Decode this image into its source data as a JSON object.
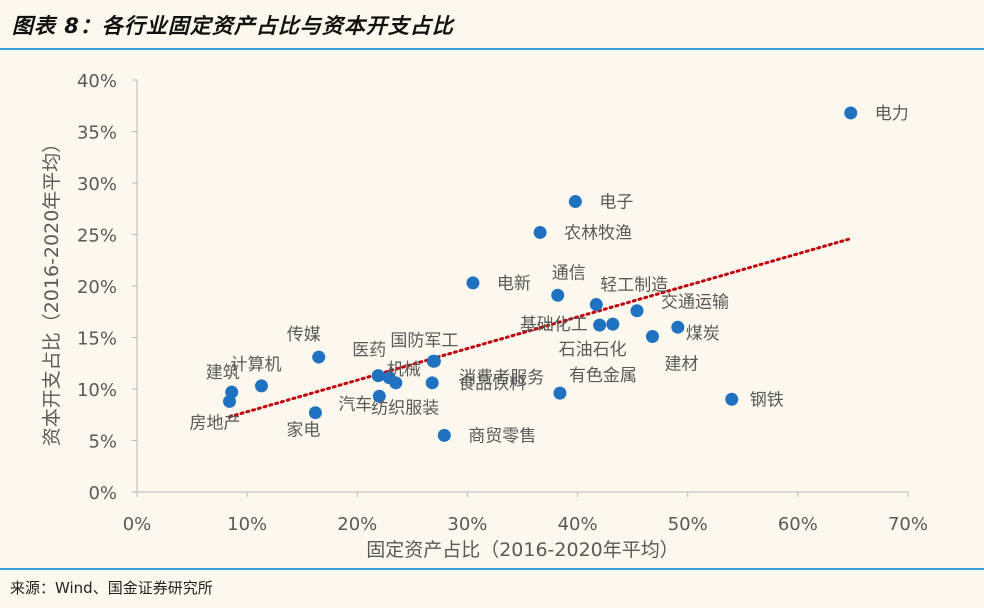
{
  "page": {
    "title": "图表 8：各行业固定资产占比与资本开支占比",
    "source": "来源：Wind、国金证券研究所"
  },
  "colors": {
    "point": "#1f72bf",
    "trend": "#c0000f",
    "axis": "#b9b9b9",
    "text": "#595959",
    "accent_rule": "#3aa0d8"
  },
  "chart_data": {
    "type": "scatter",
    "title": "各行业固定资产占比与资本开支占比",
    "xlabel": "固定资产占比（2016-2020年平均）",
    "ylabel": "资本开支占比（2016-2020年平均）",
    "xlim": [
      0,
      70
    ],
    "ylim": [
      0,
      40
    ],
    "x_ticks": [
      0,
      10,
      20,
      30,
      40,
      50,
      60,
      70
    ],
    "y_ticks": [
      0,
      5,
      10,
      15,
      20,
      25,
      30,
      35,
      40
    ],
    "x_tick_labels": [
      "0%",
      "10%",
      "20%",
      "30%",
      "40%",
      "50%",
      "60%",
      "70%"
    ],
    "y_tick_labels": [
      "0%",
      "5%",
      "10%",
      "15%",
      "20%",
      "25%",
      "30%",
      "35%",
      "40%"
    ],
    "unit": "%",
    "points": [
      {
        "label": "电力",
        "x": 64.8,
        "y": 36.8
      },
      {
        "label": "电子",
        "x": 39.8,
        "y": 28.2
      },
      {
        "label": "农林牧渔",
        "x": 36.6,
        "y": 25.2
      },
      {
        "label": "电新",
        "x": 30.5,
        "y": 20.3
      },
      {
        "label": "通信",
        "x": 38.2,
        "y": 19.1
      },
      {
        "label": "轻工制造",
        "x": 41.7,
        "y": 18.2
      },
      {
        "label": "交通运输",
        "x": 45.4,
        "y": 17.6
      },
      {
        "label": "基础化工",
        "x": 43.2,
        "y": 16.3
      },
      {
        "label": "石油石化",
        "x": 42.0,
        "y": 16.2
      },
      {
        "label": "煤炭",
        "x": 49.1,
        "y": 16.0
      },
      {
        "label": "建材",
        "x": 46.8,
        "y": 15.1
      },
      {
        "label": "钢铁",
        "x": 54.0,
        "y": 9.0
      },
      {
        "label": "有色金属",
        "x": 38.4,
        "y": 9.6
      },
      {
        "label": "商贸零售",
        "x": 27.9,
        "y": 5.5
      },
      {
        "label": "国防军工",
        "x": 27.0,
        "y": 12.7
      },
      {
        "label": "消费者服务",
        "x": 26.9,
        "y": 12.7
      },
      {
        "label": "食品饮料",
        "x": 26.8,
        "y": 10.6
      },
      {
        "label": "机械",
        "x": 23.5,
        "y": 10.6
      },
      {
        "label": "纺织服装",
        "x": 22.9,
        "y": 11.1
      },
      {
        "label": "医药",
        "x": 21.9,
        "y": 11.3
      },
      {
        "label": "汽车",
        "x": 22.0,
        "y": 9.3
      },
      {
        "label": "传媒",
        "x": 16.5,
        "y": 13.1
      },
      {
        "label": "家电",
        "x": 16.2,
        "y": 7.7
      },
      {
        "label": "计算机",
        "x": 11.3,
        "y": 10.3
      },
      {
        "label": "建筑",
        "x": 8.6,
        "y": 9.7
      },
      {
        "label": "房地产",
        "x": 8.4,
        "y": 8.8
      }
    ],
    "trendline": {
      "style": "dotted",
      "x": [
        8.4,
        64.8
      ],
      "y": [
        7.3,
        24.6
      ]
    }
  }
}
